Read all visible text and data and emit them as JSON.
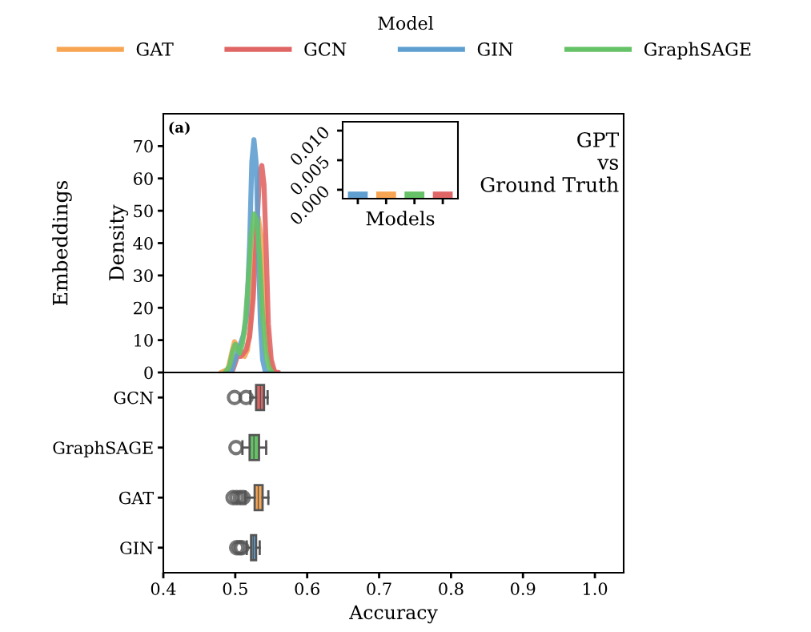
{
  "chart_data": [
    {
      "type": "line",
      "ylabel": "Density",
      "legend_title": "Model",
      "legend": "top",
      "tick_labels": "y",
      "xlim": [
        0.4,
        1.04
      ],
      "ylim": [
        0,
        80
      ],
      "yticks": [
        0,
        10,
        20,
        30,
        40,
        50,
        60,
        70
      ],
      "annotations": [
        "(a)",
        "GPT\nvs\nGround Truth",
        "Embeddings"
      ],
      "series": [
        {
          "name": "GAT",
          "color": "#f7a552",
          "x": [
            0.48,
            0.49,
            0.495,
            0.499,
            0.503,
            0.508,
            0.513,
            0.517,
            0.521,
            0.525,
            0.529,
            0.532,
            0.536,
            0.54,
            0.545,
            0.55,
            0.556
          ],
          "values": [
            0,
            1,
            6,
            9.5,
            8,
            6,
            5,
            7,
            15,
            30,
            45,
            48,
            42,
            25,
            8,
            2,
            0
          ]
        },
        {
          "name": "GCN",
          "color": "#e06666",
          "x": [
            0.497,
            0.503,
            0.508,
            0.515,
            0.52,
            0.525,
            0.53,
            0.534,
            0.537,
            0.54,
            0.543,
            0.546,
            0.55,
            0.555,
            0.56
          ],
          "values": [
            1,
            5,
            5,
            7,
            11,
            23,
            45,
            62,
            64,
            58,
            38,
            15,
            4,
            0,
            0
          ]
        },
        {
          "name": "GIN",
          "color": "#5f9fd0",
          "x": [
            0.49,
            0.495,
            0.5,
            0.506,
            0.512,
            0.516,
            0.52,
            0.523,
            0.526,
            0.529,
            0.532,
            0.535,
            0.538,
            0.542,
            0.55
          ],
          "values": [
            0,
            0.5,
            4,
            8,
            12,
            18,
            40,
            65,
            72,
            65,
            40,
            15,
            4,
            0,
            0
          ]
        },
        {
          "name": "GraphSAGE",
          "color": "#66c266",
          "x": [
            0.486,
            0.492,
            0.497,
            0.5,
            0.503,
            0.506,
            0.51,
            0.514,
            0.518,
            0.522,
            0.526,
            0.53,
            0.534,
            0.538,
            0.542,
            0.546,
            0.551
          ],
          "values": [
            0,
            2,
            7,
            8.7,
            7.5,
            6,
            9,
            16,
            28,
            42,
            49,
            47,
            35,
            18,
            7,
            2,
            0
          ]
        }
      ]
    },
    {
      "type": "box",
      "orientation": "horizontal",
      "xlabel": "Accuracy",
      "xlim": [
        0.4,
        1.04
      ],
      "xticks": [
        {
          "value": 0.4,
          "label": "0.4"
        },
        {
          "value": 0.5,
          "label": "0.5"
        },
        {
          "value": 0.6,
          "label": "0.6"
        },
        {
          "value": 0.7,
          "label": "0.7"
        },
        {
          "value": 0.8,
          "label": "0.8"
        },
        {
          "value": 0.9,
          "label": "0.9"
        },
        {
          "value": 1.0,
          "label": "1.0"
        }
      ],
      "categories": [
        "GCN",
        "GraphSAGE",
        "GAT",
        "GIN"
      ],
      "colors": [
        "#e06666",
        "#66c266",
        "#f7a552",
        "#5f9fd0"
      ],
      "boxes": [
        {
          "low": 0.521,
          "q1": 0.529,
          "median": 0.535,
          "q3": 0.54,
          "high": 0.545,
          "outliers": [
            0.499,
            0.515
          ]
        },
        {
          "low": 0.51,
          "q1": 0.52,
          "median": 0.526,
          "q3": 0.533,
          "high": 0.543,
          "outliers": [
            0.501
          ]
        },
        {
          "low": 0.514,
          "q1": 0.527,
          "median": 0.532,
          "q3": 0.538,
          "high": 0.546,
          "outliers": [
            0.497,
            0.502,
            0.507,
            0.511
          ]
        },
        {
          "low": 0.516,
          "q1": 0.522,
          "median": 0.525,
          "q3": 0.529,
          "high": 0.534,
          "outliers": [
            0.502,
            0.506,
            0.509
          ]
        }
      ]
    },
    {
      "type": "bar",
      "xlabel": "Models",
      "tick_labels": "y",
      "categories": [
        null,
        null,
        null,
        null
      ],
      "colors": [
        "#5f9fd0",
        "#f7a552",
        "#66c266",
        "#e06666"
      ],
      "base": [
        -0.0015,
        -0.0015,
        -0.0015,
        -0.0015
      ],
      "values": [
        0.0012,
        0.0012,
        0.0012,
        0.0012
      ],
      "ylim": [
        -0.0015,
        0.0115
      ],
      "yticks": [
        {
          "value": 0,
          "label": "0.000"
        },
        {
          "value": 0.005,
          "label": "0.005"
        },
        {
          "value": 0.01,
          "label": "0.010"
        }
      ]
    }
  ]
}
